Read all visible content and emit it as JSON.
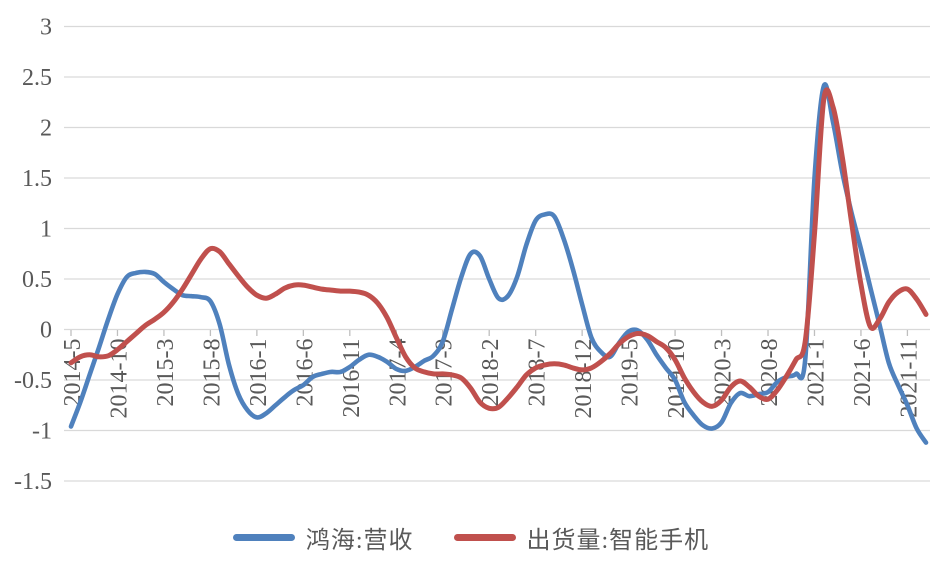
{
  "colors": {
    "background": "#FFFFFF",
    "gridline": "#D9D9D9",
    "axis_tick": "#BFBFBF",
    "label_text": "#595959",
    "series_blue": "#4F81BD",
    "series_red": "#C0504D"
  },
  "chart_data": {
    "type": "line",
    "grid": "horizontal",
    "legend_position": "bottom",
    "ylim": [
      -1.5,
      3
    ],
    "y_tick_values": [
      3,
      2.5,
      2,
      1.5,
      1,
      0.5,
      0,
      -0.5,
      -1,
      -1.5
    ],
    "y_tick_labels": [
      "3",
      "2.5",
      "2",
      "1.5",
      "1",
      "0.5",
      "0",
      "-0.5",
      "-1",
      "-1.5"
    ],
    "x_tick_every": 5,
    "x_tick_labels": [
      "2014-5",
      "2014-10",
      "2015-3",
      "2015-8",
      "2016-1",
      "2016-6",
      "2016-11",
      "2017-4",
      "2017-9",
      "2018-2",
      "2018-7",
      "2018-12",
      "2019-5",
      "2019-10",
      "2020-3",
      "2020-8",
      "2021-1",
      "2021-6",
      "2021-11"
    ],
    "x_categories": [
      "2014-5",
      "2014-6",
      "2014-7",
      "2014-8",
      "2014-9",
      "2014-10",
      "2014-11",
      "2014-12",
      "2015-1",
      "2015-2",
      "2015-3",
      "2015-4",
      "2015-5",
      "2015-6",
      "2015-7",
      "2015-8",
      "2015-9",
      "2015-10",
      "2015-11",
      "2015-12",
      "2016-1",
      "2016-2",
      "2016-3",
      "2016-4",
      "2016-5",
      "2016-6",
      "2016-7",
      "2016-8",
      "2016-9",
      "2016-10",
      "2016-11",
      "2016-12",
      "2017-1",
      "2017-2",
      "2017-3",
      "2017-4",
      "2017-5",
      "2017-6",
      "2017-7",
      "2017-8",
      "2017-9",
      "2017-10",
      "2017-11",
      "2017-12",
      "2018-1",
      "2018-2",
      "2018-3",
      "2018-4",
      "2018-5",
      "2018-6",
      "2018-7",
      "2018-8",
      "2018-9",
      "2018-10",
      "2018-11",
      "2018-12",
      "2019-1",
      "2019-2",
      "2019-3",
      "2019-4",
      "2019-5",
      "2019-6",
      "2019-7",
      "2019-8",
      "2019-9",
      "2019-10",
      "2019-11",
      "2019-12",
      "2020-1",
      "2020-2",
      "2020-3",
      "2020-4",
      "2020-5",
      "2020-6",
      "2020-7",
      "2020-8",
      "2020-9",
      "2020-10",
      "2020-11",
      "2020-12",
      "2021-1",
      "2021-2",
      "2021-3",
      "2021-4",
      "2021-5",
      "2021-6",
      "2021-7",
      "2021-8",
      "2021-9",
      "2021-10",
      "2021-11",
      "2021-12",
      "2022-1"
    ],
    "series": [
      {
        "name": "鸿海:营收",
        "color": "#4F81BD",
        "stroke_width": 4.6,
        "values": [
          -0.96,
          -0.72,
          -0.45,
          -0.18,
          0.1,
          0.35,
          0.52,
          0.56,
          0.57,
          0.55,
          0.47,
          0.4,
          0.34,
          0.33,
          0.32,
          0.28,
          0.05,
          -0.35,
          -0.64,
          -0.8,
          -0.87,
          -0.83,
          -0.75,
          -0.67,
          -0.6,
          -0.55,
          -0.47,
          -0.44,
          -0.42,
          -0.42,
          -0.37,
          -0.3,
          -0.25,
          -0.27,
          -0.32,
          -0.39,
          -0.41,
          -0.37,
          -0.31,
          -0.26,
          -0.12,
          0.2,
          0.52,
          0.75,
          0.73,
          0.5,
          0.31,
          0.33,
          0.52,
          0.84,
          1.08,
          1.14,
          1.12,
          0.9,
          0.6,
          0.25,
          -0.08,
          -0.22,
          -0.27,
          -0.13,
          -0.02,
          -0.01,
          -0.1,
          -0.25,
          -0.38,
          -0.5,
          -0.72,
          -0.85,
          -0.95,
          -0.98,
          -0.92,
          -0.73,
          -0.63,
          -0.66,
          -0.64,
          -0.62,
          -0.52,
          -0.47,
          -0.44,
          -0.3,
          1.5,
          2.41,
          2.05,
          1.55,
          1.15,
          0.8,
          0.42,
          0.05,
          -0.33,
          -0.55,
          -0.75,
          -0.98,
          -1.12
        ]
      },
      {
        "name": "出货量:智能手机",
        "color": "#C0504D",
        "stroke_width": 5,
        "values": [
          -0.33,
          -0.27,
          -0.25,
          -0.27,
          -0.26,
          -0.2,
          -0.12,
          -0.04,
          0.04,
          0.1,
          0.17,
          0.27,
          0.4,
          0.55,
          0.7,
          0.8,
          0.77,
          0.65,
          0.53,
          0.42,
          0.34,
          0.31,
          0.35,
          0.41,
          0.44,
          0.44,
          0.42,
          0.4,
          0.39,
          0.38,
          0.38,
          0.37,
          0.34,
          0.26,
          0.12,
          -0.08,
          -0.27,
          -0.38,
          -0.42,
          -0.44,
          -0.44,
          -0.45,
          -0.48,
          -0.58,
          -0.72,
          -0.78,
          -0.77,
          -0.68,
          -0.57,
          -0.45,
          -0.38,
          -0.35,
          -0.34,
          -0.35,
          -0.38,
          -0.4,
          -0.38,
          -0.32,
          -0.24,
          -0.14,
          -0.07,
          -0.04,
          -0.06,
          -0.12,
          -0.18,
          -0.3,
          -0.48,
          -0.62,
          -0.72,
          -0.76,
          -0.7,
          -0.57,
          -0.51,
          -0.57,
          -0.66,
          -0.69,
          -0.6,
          -0.46,
          -0.3,
          -0.12,
          0.95,
          2.28,
          2.2,
          1.7,
          1.05,
          0.45,
          0.03,
          0.1,
          0.27,
          0.37,
          0.4,
          0.3,
          0.15
        ]
      }
    ]
  }
}
